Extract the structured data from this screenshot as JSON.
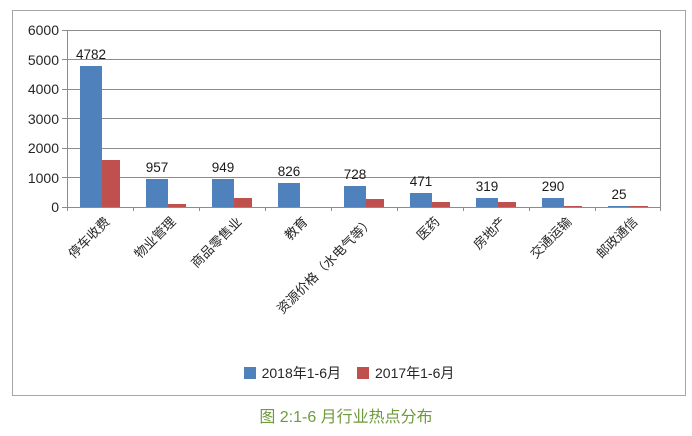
{
  "figure_caption": "图 2:1-6 月行业热点分布",
  "colors": {
    "series_2018_blue": "#4f81bd",
    "series_2017_red": "#c0504d",
    "gridline_gray": "#8c8c8c",
    "frame_border_gray": "#a6a6a6",
    "caption_green": "#6f9a3c",
    "axis_text": "#262626"
  },
  "chart_data": {
    "type": "bar",
    "title": "",
    "xlabel": "",
    "ylabel": "",
    "categories": [
      "停车收费",
      "物业管理",
      "商品零售业",
      "教育",
      "资源价格（水电气等）",
      "医药",
      "房地产",
      "交通运输",
      "邮政通信"
    ],
    "series": [
      {
        "name": "2018年1-6月",
        "color": "#4f81bd",
        "values": [
          4782,
          957,
          949,
          826,
          728,
          471,
          319,
          290,
          25
        ],
        "data_labels_shown": true
      },
      {
        "name": "2017年1-6月",
        "color": "#c0504d",
        "values": [
          1580,
          90,
          300,
          0,
          280,
          160,
          170,
          30,
          20
        ],
        "data_labels_shown": false
      }
    ],
    "ylim": [
      0,
      6000
    ],
    "ytick_step": 1000,
    "ytick_labels": [
      "0",
      "1000",
      "2000",
      "3000",
      "4000",
      "5000",
      "6000"
    ],
    "grid": "horizontal",
    "legend_position": "bottom",
    "category_label_rotation_deg": -45
  }
}
